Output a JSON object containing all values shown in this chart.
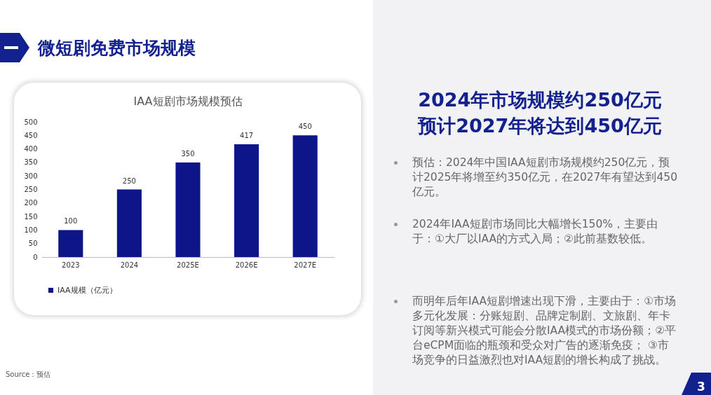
{
  "chart_data": {
    "type": "bar",
    "title": "IAA短剧市场规模预估",
    "categories": [
      "2023",
      "2024",
      "2025E",
      "2026E",
      "2027E"
    ],
    "series": [
      {
        "name": "IAA规模（亿元）",
        "color": "#0d1588",
        "values": [
          100,
          250,
          350,
          417,
          450
        ]
      }
    ],
    "ylim": [
      0,
      500
    ],
    "yticks": [
      0,
      50,
      100,
      150,
      200,
      250,
      300,
      350,
      400,
      450,
      500
    ],
    "grid": false,
    "legend": "bottom",
    "data_labels": true,
    "annotations": [
      "微短剧免费市场规模",
      "2024年市场规模约250亿元",
      "预计2027年将达到450亿元",
      "预估：2024年中国IAA短剧市场规模约250亿元，预计2025年将增至约350亿元，在2027年有望达到450亿元。",
      "2024年IAA短剧市场同比大幅增长150%，主要由于：①大厂以IAA的方式入局；②此前基数较低。",
      "而明年后年IAA短剧增速出现下滑，主要由于：①市场多元化发展：分账短剧、品牌定制剧、文旅剧、年卡订阅等新兴模式可能会分散IAA模式的市场份额；②平台eCPM面临的瓶颈和受众对广告的逐渐免疫； ③市场竞争的日益激烈也对IAA短剧的增长构成了挑战。",
      "Source：预估",
      "3"
    ]
  }
}
